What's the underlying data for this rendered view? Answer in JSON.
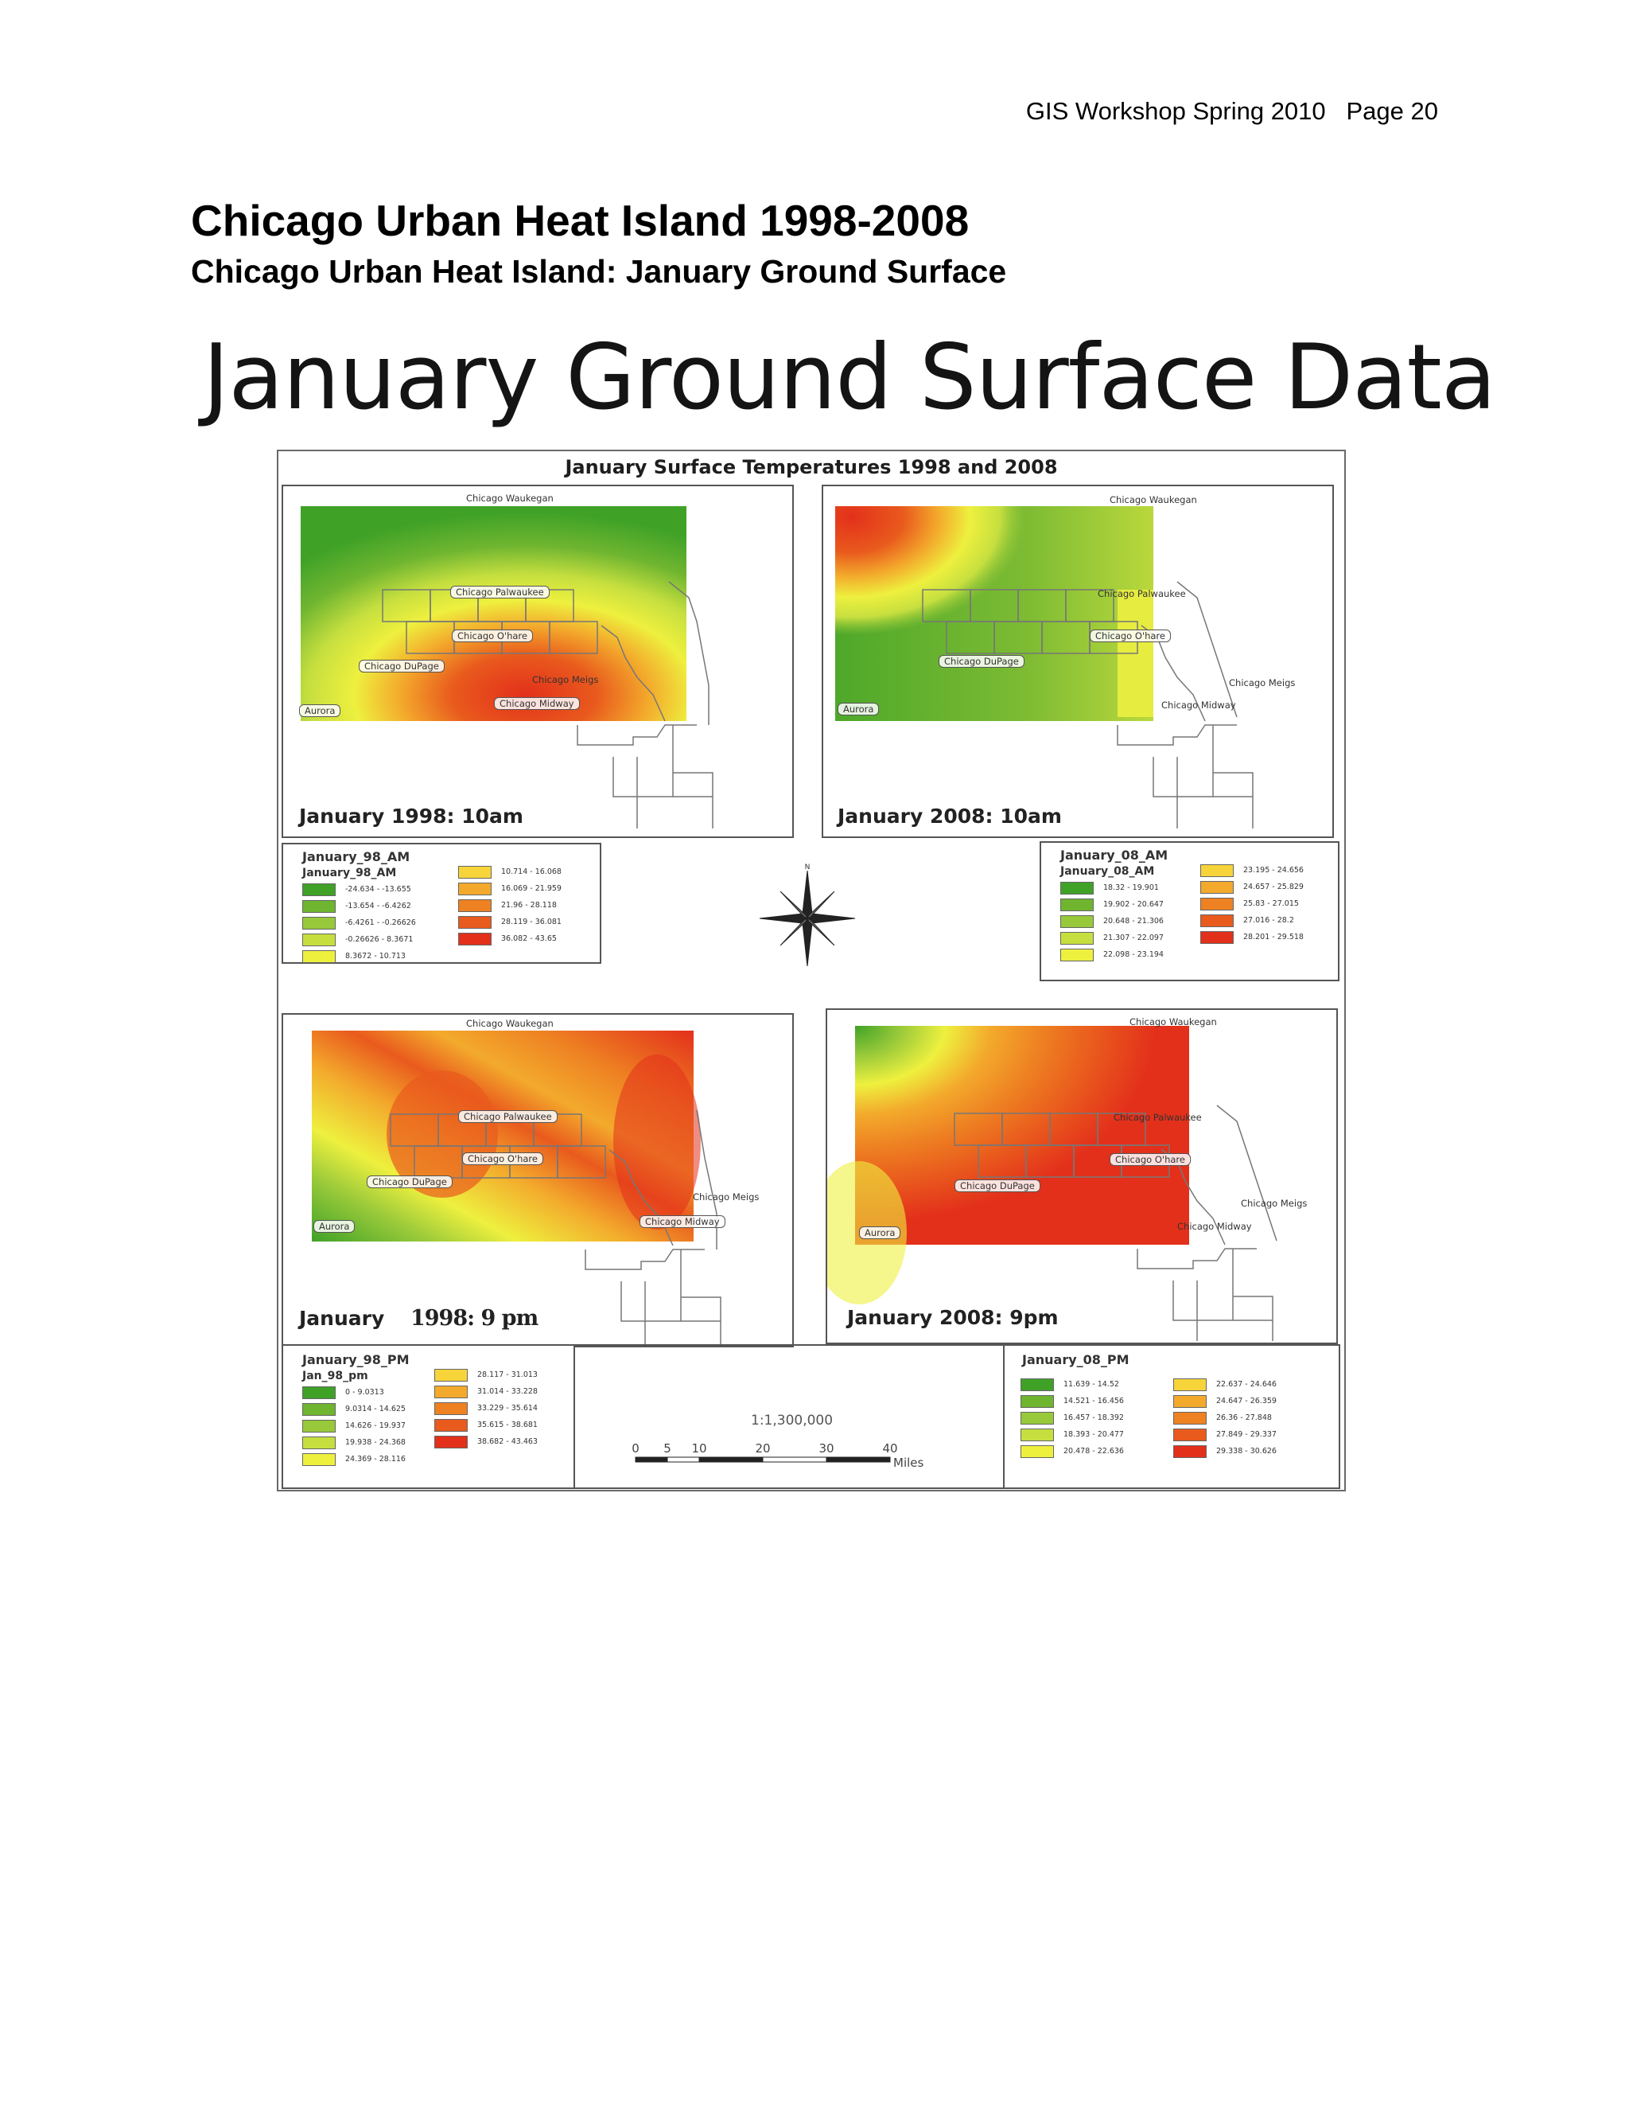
{
  "page": {
    "header": "GIS Workshop Spring 2010   Page 20",
    "title": "Chicago Urban Heat Island 1998-2008",
    "subtitle": "Chicago Urban Heat Island: January Ground Surface"
  },
  "slide": {
    "title": "January Ground Surface Data"
  },
  "figure": {
    "title": "January Surface Temperatures 1998 and 2008",
    "maps": [
      {
        "id": "jan98am",
        "label": "January 1998: 10am"
      },
      {
        "id": "jan08am",
        "label": "January 2008: 10am"
      },
      {
        "id": "jan98pm",
        "label_prefix": "January",
        "label_suffix": "1998: 9 pm"
      },
      {
        "id": "jan08pm",
        "label": "January 2008: 9pm"
      }
    ],
    "places": {
      "waukegan": "Chicago Waukegan",
      "palwaukee": "Chicago Palwaukee",
      "ohare": "Chicago O'hare",
      "dupage": "Chicago DuPage",
      "meigs": "Chicago Meigs",
      "midway": "Chicago Midway",
      "aurora": "Aurora"
    },
    "legends": {
      "jan98am": {
        "title": "January_98_AM",
        "subtitle": "January_98_AM",
        "classes": [
          "-24.634 - -13.655",
          "-13.654 - -6.4262",
          "-6.4261 - -0.26626",
          "-0.26626 - 8.3671",
          "8.3672 - 10.713",
          "10.714 - 16.068",
          "16.069 - 21.959",
          "21.96 - 28.118",
          "28.119 - 36.081",
          "36.082 - 43.65"
        ],
        "colors": [
          "#3fa227",
          "#6fb530",
          "#98c93a",
          "#c6df3f",
          "#eef03e",
          "#f7d53a",
          "#f3aa2c",
          "#ee8122",
          "#e95a1d",
          "#e3301b"
        ]
      },
      "jan08am": {
        "title": "January_08_AM",
        "subtitle": "January_08_AM",
        "classes": [
          "18.32 - 19.901",
          "19.902 - 20.647",
          "20.648 - 21.306",
          "21.307 - 22.097",
          "22.098 - 23.194",
          "23.195 - 24.656",
          "24.657 - 25.829",
          "25.83 - 27.015",
          "27.016 - 28.2",
          "28.201 - 29.518"
        ],
        "colors": [
          "#3fa227",
          "#6fb530",
          "#98c93a",
          "#c6df3f",
          "#eef03e",
          "#f7d53a",
          "#f3aa2c",
          "#ee8122",
          "#e95a1d",
          "#e3301b"
        ]
      },
      "jan98pm": {
        "title": "January_98_PM",
        "subtitle": "Jan_98_pm",
        "classes": [
          "0 - 9.0313",
          "9.0314 - 14.625",
          "14.626 - 19.937",
          "19.938 - 24.368",
          "24.369 - 28.116",
          "28.117 - 31.013",
          "31.014 - 33.228",
          "33.229 - 35.614",
          "35.615 - 38.681",
          "38.682 - 43.463"
        ],
        "colors": [
          "#3fa227",
          "#6fb530",
          "#98c93a",
          "#c6df3f",
          "#eef03e",
          "#f7d53a",
          "#f3aa2c",
          "#ee8122",
          "#e95a1d",
          "#e3301b"
        ]
      },
      "jan08pm": {
        "title": "January_08_PM",
        "subtitle": "",
        "classes": [
          "11.639 - 14.52",
          "14.521 - 16.456",
          "16.457 - 18.392",
          "18.393 - 20.477",
          "20.478 - 22.636",
          "22.637 - 24.646",
          "24.647 - 26.359",
          "26.36 - 27.848",
          "27.849 - 29.337",
          "29.338 - 30.626"
        ],
        "colors": [
          "#3fa227",
          "#6fb530",
          "#98c93a",
          "#c6df3f",
          "#eef03e",
          "#f7d53a",
          "#f3aa2c",
          "#ee8122",
          "#e95a1d",
          "#e3301b"
        ]
      }
    },
    "scale": {
      "ratio": "1:1,300,000",
      "ticks": [
        "0",
        "5",
        "10",
        "20",
        "30",
        "40"
      ],
      "unit": "Miles"
    },
    "compass": {
      "icon": "north-arrow-icon",
      "north": "N"
    }
  }
}
